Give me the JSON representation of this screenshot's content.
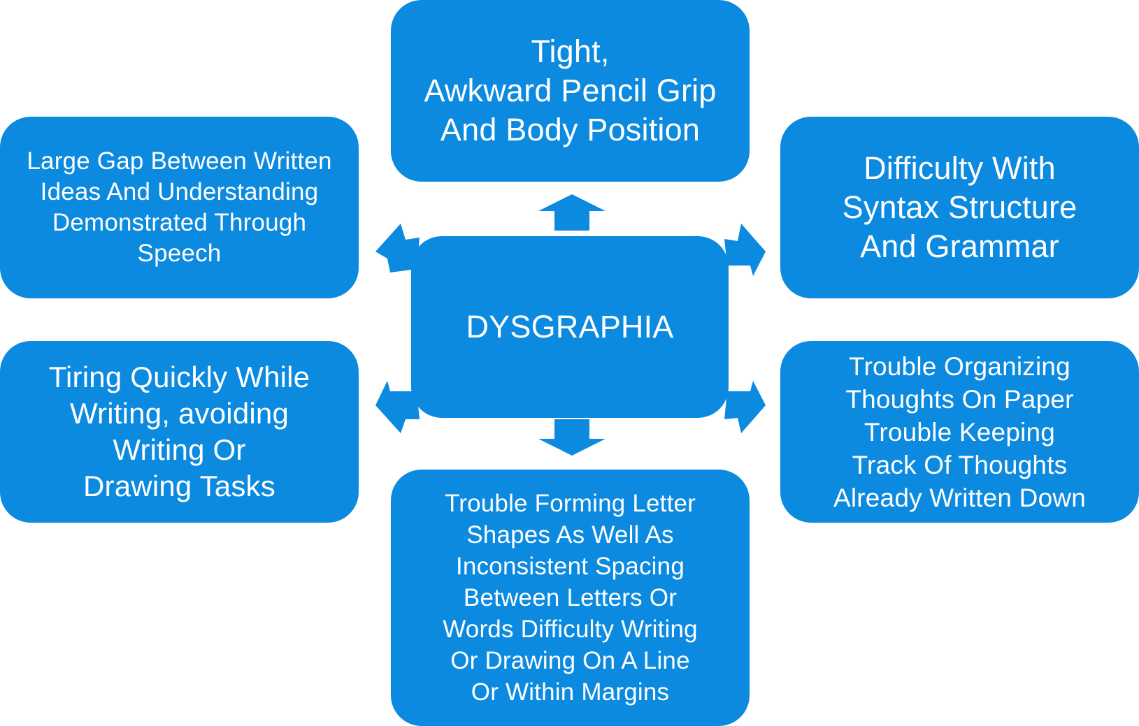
{
  "colors": {
    "node_fill": "#0b8ae0",
    "text": "#ffffff",
    "background": "#ffffff"
  },
  "center": {
    "label": "DYSGRAPHIA"
  },
  "nodes": {
    "top": {
      "label": "Tight,\nAwkward Pencil Grip\nAnd Body Position"
    },
    "top_left": {
      "label": "Large Gap Between Written\nIdeas And Understanding\nDemonstrated Through\nSpeech"
    },
    "top_right": {
      "label": "Difficulty With\nSyntax Structure\nAnd Grammar"
    },
    "bottom_left": {
      "label": "Tiring Quickly While\nWriting, avoiding\nWriting Or\nDrawing Tasks"
    },
    "bottom_right": {
      "label": "Trouble Organizing\nThoughts On Paper\nTrouble Keeping\nTrack Of Thoughts\nAlready Written Down"
    },
    "bottom": {
      "label": "Trouble Forming Letter\nShapes As Well As\nInconsistent Spacing\nBetween Letters Or\nWords Difficulty Writing\nOr Drawing On A Line\nOr Within Margins"
    }
  }
}
